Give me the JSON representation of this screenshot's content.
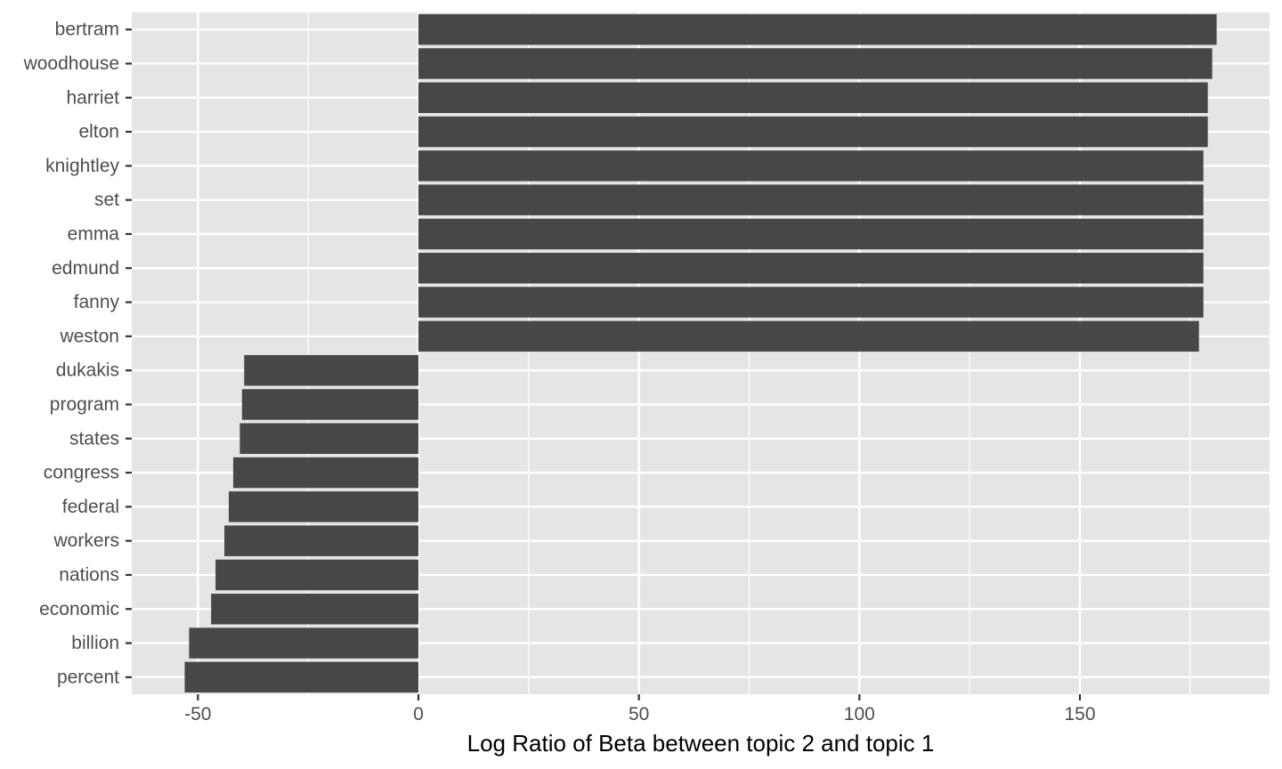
{
  "chart_data": {
    "type": "bar",
    "orientation": "horizontal",
    "categories": [
      "bertram",
      "woodhouse",
      "harriet",
      "elton",
      "knightley",
      "set",
      "emma",
      "edmund",
      "fanny",
      "weston",
      "dukakis",
      "program",
      "states",
      "congress",
      "federal",
      "workers",
      "nations",
      "economic",
      "billion",
      "percent"
    ],
    "values": [
      181,
      180,
      179,
      179,
      178,
      178,
      178,
      178,
      178,
      177,
      -39.5,
      -40,
      -40.5,
      -42,
      -43,
      -44,
      -46,
      -47,
      -52,
      -53
    ],
    "xlabel": "Log Ratio of Beta between topic 2 and topic 1",
    "ylabel": "",
    "xlim": [
      -65,
      193
    ],
    "xticks": [
      -50,
      0,
      50,
      100,
      150
    ],
    "xtick_labels": [
      "-50",
      "0",
      "50",
      "100",
      "150"
    ],
    "grid": true,
    "colors": {
      "bar": "#474747",
      "panel": "#e5e5e5",
      "grid": "#ffffff",
      "tick_text": "#4d4d4d",
      "tick_mark": "#333333"
    }
  }
}
